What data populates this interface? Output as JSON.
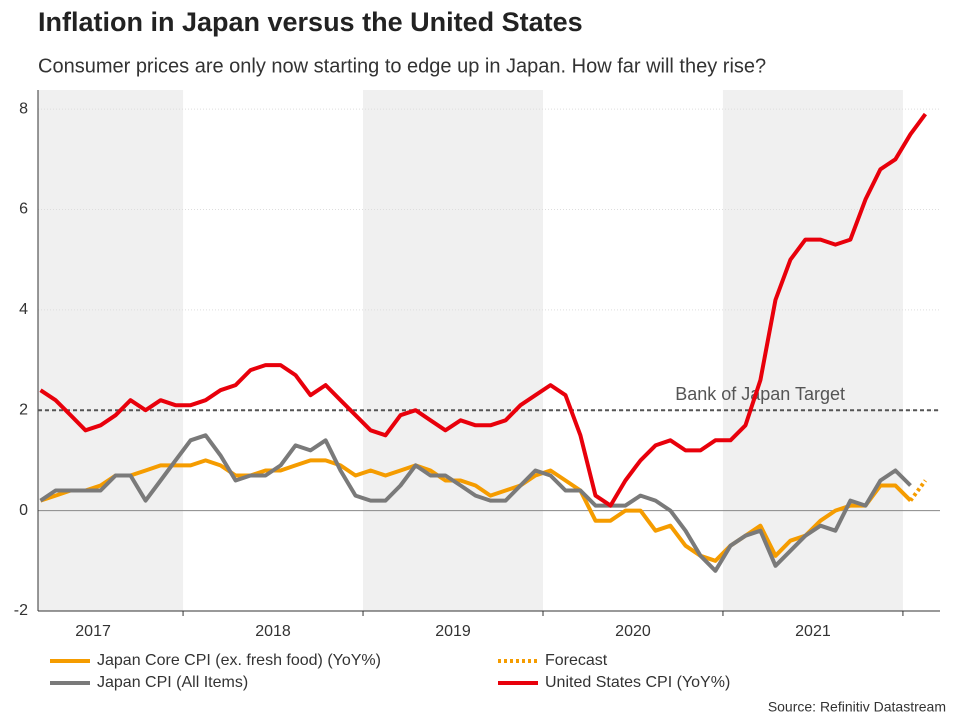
{
  "chart_data": {
    "type": "line",
    "title": "Inflation in Japan versus the United States",
    "subtitle": "Consumer prices are only now starting to edge up in Japan. How far will they rise?",
    "source": "Source: Refinitiv Datastream",
    "x": [
      2017.208,
      2017.292,
      2017.375,
      2017.458,
      2017.542,
      2017.625,
      2017.708,
      2017.792,
      2017.875,
      2017.958,
      2018.042,
      2018.125,
      2018.208,
      2018.292,
      2018.375,
      2018.458,
      2018.542,
      2018.625,
      2018.708,
      2018.792,
      2018.875,
      2018.958,
      2019.042,
      2019.125,
      2019.208,
      2019.292,
      2019.375,
      2019.458,
      2019.542,
      2019.625,
      2019.708,
      2019.792,
      2019.875,
      2019.958,
      2020.042,
      2020.125,
      2020.208,
      2020.292,
      2020.375,
      2020.458,
      2020.542,
      2020.625,
      2020.708,
      2020.792,
      2020.875,
      2020.958,
      2021.042,
      2021.125,
      2021.208,
      2021.292,
      2021.375,
      2021.458,
      2021.542,
      2021.625,
      2021.708,
      2021.792,
      2021.875,
      2021.958,
      2022.042,
      2022.125
    ],
    "series": [
      {
        "name": "Japan Core CPI (ex. fresh food) (YoY%)",
        "color": "#f59c00",
        "style": "solid",
        "values": [
          0.2,
          0.3,
          0.4,
          0.4,
          0.5,
          0.7,
          0.7,
          0.8,
          0.9,
          0.9,
          0.9,
          1.0,
          0.9,
          0.7,
          0.7,
          0.8,
          0.8,
          0.9,
          1.0,
          1.0,
          0.9,
          0.7,
          0.8,
          0.7,
          0.8,
          0.9,
          0.8,
          0.6,
          0.6,
          0.5,
          0.3,
          0.4,
          0.5,
          0.7,
          0.8,
          0.6,
          0.4,
          -0.2,
          -0.2,
          0.0,
          0.0,
          -0.4,
          -0.3,
          -0.7,
          -0.9,
          -1.0,
          -0.7,
          -0.5,
          -0.3,
          -0.9,
          -0.6,
          -0.5,
          -0.2,
          0.0,
          0.1,
          0.1,
          0.5,
          0.5,
          0.2,
          null
        ]
      },
      {
        "name": "Japan CPI (All Items)",
        "color": "#7a7a7a",
        "style": "solid",
        "values": [
          0.2,
          0.4,
          0.4,
          0.4,
          0.4,
          0.7,
          0.7,
          0.2,
          0.6,
          1.0,
          1.4,
          1.5,
          1.1,
          0.6,
          0.7,
          0.7,
          0.9,
          1.3,
          1.2,
          1.4,
          0.8,
          0.3,
          0.2,
          0.2,
          0.5,
          0.9,
          0.7,
          0.7,
          0.5,
          0.3,
          0.2,
          0.2,
          0.5,
          0.8,
          0.7,
          0.4,
          0.4,
          0.1,
          0.1,
          0.1,
          0.3,
          0.2,
          0.0,
          -0.4,
          -0.9,
          -1.2,
          -0.7,
          -0.5,
          -0.4,
          -1.1,
          -0.8,
          -0.5,
          -0.3,
          -0.4,
          0.2,
          0.1,
          0.6,
          0.8,
          0.5,
          null
        ]
      },
      {
        "name": "Forecast",
        "color": "#f59c00",
        "style": "dotted",
        "values": [
          null,
          null,
          null,
          null,
          null,
          null,
          null,
          null,
          null,
          null,
          null,
          null,
          null,
          null,
          null,
          null,
          null,
          null,
          null,
          null,
          null,
          null,
          null,
          null,
          null,
          null,
          null,
          null,
          null,
          null,
          null,
          null,
          null,
          null,
          null,
          null,
          null,
          null,
          null,
          null,
          null,
          null,
          null,
          null,
          null,
          null,
          null,
          null,
          null,
          null,
          null,
          null,
          null,
          null,
          null,
          null,
          null,
          null,
          0.2,
          0.6
        ]
      },
      {
        "name": "United States CPI (YoY%)",
        "color": "#e8000b",
        "style": "solid",
        "values": [
          2.4,
          2.2,
          1.9,
          1.6,
          1.7,
          1.9,
          2.2,
          2.0,
          2.2,
          2.1,
          2.1,
          2.2,
          2.4,
          2.5,
          2.8,
          2.9,
          2.9,
          2.7,
          2.3,
          2.5,
          2.2,
          1.9,
          1.6,
          1.5,
          1.9,
          2.0,
          1.8,
          1.6,
          1.8,
          1.7,
          1.7,
          1.8,
          2.1,
          2.3,
          2.5,
          2.3,
          1.5,
          0.3,
          0.1,
          0.6,
          1.0,
          1.3,
          1.4,
          1.2,
          1.2,
          1.4,
          1.4,
          1.7,
          2.6,
          4.2,
          5.0,
          5.4,
          5.4,
          5.3,
          5.4,
          6.2,
          6.8,
          7.0,
          7.5,
          7.9
        ]
      }
    ],
    "reference_line": {
      "label": "Bank of Japan Target",
      "value": 2
    },
    "xlim": [
      2017.194,
      2022.206
    ],
    "xticks": [
      {
        "value": 2017.5,
        "label": "2017"
      },
      {
        "value": 2018.5,
        "label": "2018"
      },
      {
        "value": 2019.5,
        "label": "2019"
      },
      {
        "value": 2020.5,
        "label": "2020"
      },
      {
        "value": 2021.5,
        "label": "2021"
      }
    ],
    "ylim": [
      -2,
      8.38
    ],
    "yticks": [
      -2,
      0,
      2,
      4,
      6,
      8
    ],
    "grid": true
  }
}
